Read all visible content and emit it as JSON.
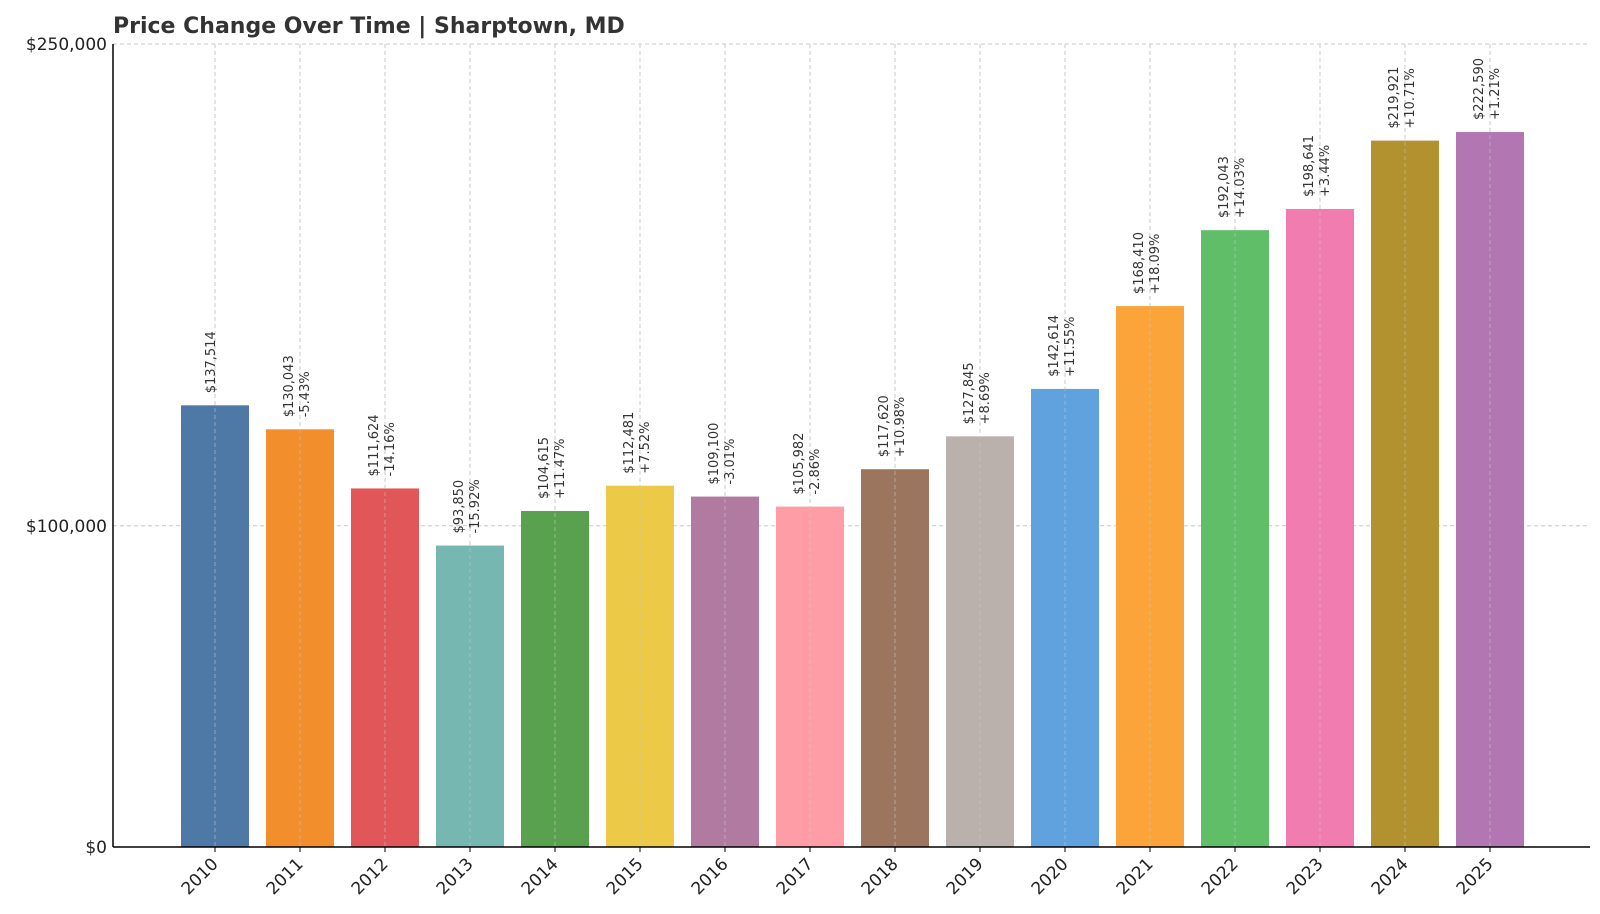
{
  "chart_data": {
    "type": "bar",
    "title": "Price Change Over Time | Sharptown, MD",
    "xlabel": "",
    "ylabel": "",
    "ylim": [
      0,
      250000
    ],
    "yticks": [
      {
        "value": 0,
        "label": "$0"
      },
      {
        "value": 100000,
        "label": "$100,000"
      },
      {
        "value": 250000,
        "label": "$250,000"
      }
    ],
    "grid": true,
    "categories": [
      "2010",
      "2011",
      "2012",
      "2013",
      "2014",
      "2015",
      "2016",
      "2017",
      "2018",
      "2019",
      "2020",
      "2021",
      "2022",
      "2023",
      "2024",
      "2025"
    ],
    "values": [
      137514,
      130043,
      111624,
      93850,
      104615,
      112481,
      109100,
      105982,
      117620,
      127845,
      142614,
      168410,
      192043,
      198641,
      219921,
      222590
    ],
    "value_labels": [
      "$137,514",
      "$130,043",
      "$111,624",
      "$93,850",
      "$104,615",
      "$112,481",
      "$109,100",
      "$105,982",
      "$117,620",
      "$127,845",
      "$142,614",
      "$168,410",
      "$192,043",
      "$198,641",
      "$219,921",
      "$222,590"
    ],
    "change_labels": [
      "",
      "-5.43%",
      "-14.16%",
      "-15.92%",
      "+11.47%",
      "+7.52%",
      "-3.01%",
      "-2.86%",
      "+10.98%",
      "+8.69%",
      "+11.55%",
      "+18.09%",
      "+14.03%",
      "+3.44%",
      "+10.71%",
      "+1.21%"
    ],
    "colors": [
      "#4e79a7",
      "#f28e2b",
      "#e15759",
      "#76b7b2",
      "#59a14f",
      "#edc948",
      "#b07aa1",
      "#ff9da7",
      "#9c755f",
      "#bab0ac",
      "#5fa2dd",
      "#faa43a",
      "#60bd68",
      "#f17cb0",
      "#b2912f",
      "#b276b2"
    ]
  }
}
